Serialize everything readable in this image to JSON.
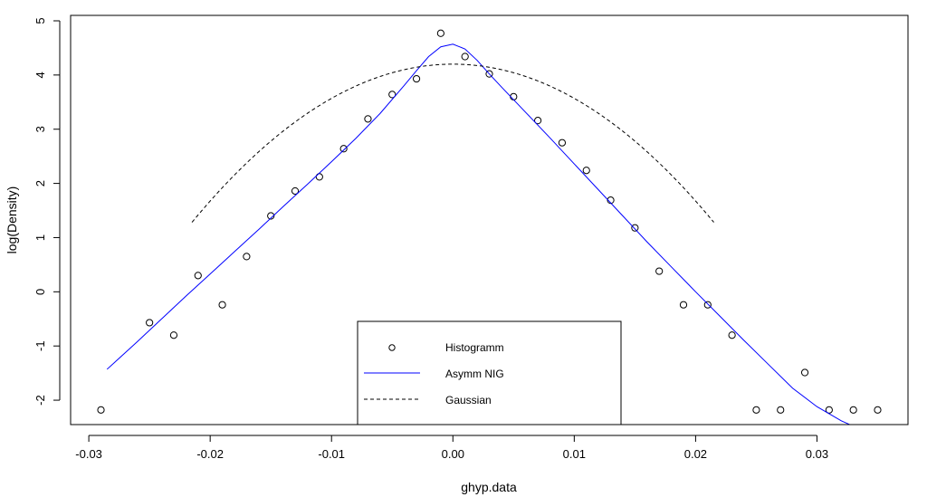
{
  "chart_data": {
    "type": "scatter",
    "title": "",
    "xlabel": "ghyp.data",
    "ylabel": "log(Density)",
    "xlim": [
      -0.0315,
      0.0375
    ],
    "ylim": [
      -2.45,
      5.1
    ],
    "x_ticks": [
      -0.03,
      -0.02,
      -0.01,
      0.0,
      0.01,
      0.02,
      0.03
    ],
    "x_tick_labels": [
      "-0.03",
      "-0.02",
      "-0.01",
      "0.00",
      "0.01",
      "0.02",
      "0.03"
    ],
    "y_ticks": [
      -2,
      -1,
      0,
      1,
      2,
      3,
      4,
      5
    ],
    "y_tick_labels": [
      "-2",
      "-1",
      "0",
      "1",
      "2",
      "3",
      "4",
      "5"
    ],
    "grid": false,
    "legend_position": "bottom-center",
    "legend": [
      {
        "label": "Histogramm",
        "style": "points"
      },
      {
        "label": "Asymm NIG",
        "style": "solid",
        "color": "#0000ff"
      },
      {
        "label": "Gaussian",
        "style": "dashed",
        "color": "#000000"
      }
    ],
    "series": [
      {
        "name": "Histogramm",
        "kind": "points",
        "color": "#000000",
        "x": [
          -0.029,
          -0.025,
          -0.023,
          -0.021,
          -0.019,
          -0.017,
          -0.015,
          -0.013,
          -0.011,
          -0.009,
          -0.007,
          -0.005,
          -0.003,
          -0.001,
          0.001,
          0.003,
          0.005,
          0.007,
          0.009,
          0.011,
          0.013,
          0.015,
          0.017,
          0.019,
          0.021,
          0.023,
          0.025,
          0.027,
          0.029,
          0.031,
          0.033,
          0.035
        ],
        "y": [
          -2.18,
          -0.57,
          -0.8,
          0.3,
          -0.24,
          0.65,
          1.4,
          1.86,
          2.12,
          2.64,
          3.19,
          3.64,
          3.93,
          4.77,
          4.34,
          4.02,
          3.6,
          3.16,
          2.75,
          2.24,
          1.69,
          1.18,
          0.38,
          -0.24,
          -0.24,
          -0.8,
          -2.18,
          -2.18,
          -1.49,
          -2.18,
          -2.18,
          -2.18
        ]
      },
      {
        "name": "Asymm NIG",
        "kind": "line",
        "color": "#0000ff",
        "x": [
          -0.0285,
          -0.026,
          -0.024,
          -0.022,
          -0.02,
          -0.018,
          -0.016,
          -0.014,
          -0.012,
          -0.01,
          -0.008,
          -0.006,
          -0.004,
          -0.003,
          -0.002,
          -0.001,
          0.0,
          0.001,
          0.002,
          0.003,
          0.004,
          0.006,
          0.008,
          0.01,
          0.012,
          0.014,
          0.016,
          0.018,
          0.02,
          0.022,
          0.024,
          0.026,
          0.028,
          0.03,
          0.032,
          0.033
        ],
        "y": [
          -1.43,
          -0.92,
          -0.5,
          -0.08,
          0.33,
          0.74,
          1.15,
          1.57,
          1.98,
          2.4,
          2.83,
          3.29,
          3.81,
          4.08,
          4.34,
          4.52,
          4.57,
          4.48,
          4.27,
          4.02,
          3.78,
          3.31,
          2.84,
          2.36,
          1.88,
          1.4,
          0.92,
          0.46,
          0.0,
          -0.45,
          -0.9,
          -1.34,
          -1.78,
          -2.12,
          -2.38,
          -2.48
        ]
      },
      {
        "name": "Gaussian",
        "kind": "line",
        "style": "dashed",
        "color": "#000000",
        "mean": 0.0,
        "peak": 4.2,
        "sd": 0.0089,
        "x_range": [
          -0.0215,
          0.0215
        ]
      }
    ]
  }
}
